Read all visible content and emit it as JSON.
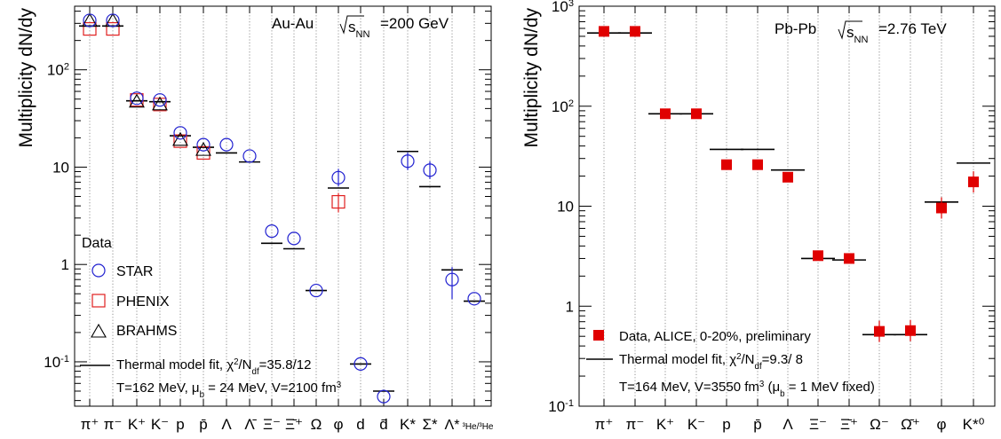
{
  "chart_data": [
    {
      "type": "scatter",
      "title": "Au-Au √s_NN=200 GeV",
      "title_parts": {
        "system": "Au-Au",
        "sqrt": "s",
        "sub": "NN",
        "energy": "=200 GeV"
      },
      "ylabel": "Multiplicity dN/dy",
      "yscale": "log",
      "ylim": [
        0.035,
        450
      ],
      "grid": "vertical dotted",
      "categories": [
        "π⁺",
        "π⁻",
        "K⁺",
        "K⁻",
        "p",
        "p̄",
        "Λ",
        "Λ̄",
        "Ξ⁻",
        "Ξ̄⁺",
        "Ω",
        "φ",
        "d",
        "d̄",
        "K*",
        "Σ*",
        "Λ*",
        "³He/³He"
      ],
      "ytick_labels": [
        {
          "value": 0.1,
          "label": "10",
          "exp": "-1"
        },
        {
          "value": 1,
          "label": "1"
        },
        {
          "value": 10,
          "label": "10"
        },
        {
          "value": 100,
          "label": "10",
          "exp": "2"
        }
      ],
      "legend_title": "Data",
      "series": [
        {
          "name": "STAR",
          "marker": "circle",
          "color": "#2020d0",
          "points": [
            [
              0,
              322
            ],
            [
              1,
              322
            ],
            [
              2,
              51
            ],
            [
              3,
              49
            ],
            [
              4,
              22.5
            ],
            [
              5,
              17
            ],
            [
              6,
              17
            ],
            [
              7,
              13
            ],
            [
              8,
              2.2
            ],
            [
              9,
              1.85
            ],
            [
              10,
              0.54
            ],
            [
              11,
              7.8
            ],
            [
              12,
              0.095
            ],
            [
              13,
              0.044
            ],
            [
              14,
              11.5
            ],
            [
              15,
              9.3
            ],
            [
              16,
              0.7
            ],
            [
              17,
              0.445
            ]
          ]
        },
        {
          "name": "PHENIX",
          "marker": "square",
          "color": "#e02020",
          "points": [
            [
              0,
              263
            ],
            [
              1,
              263
            ],
            [
              2,
              49
            ],
            [
              3,
              44
            ],
            [
              4,
              18.5
            ],
            [
              5,
              14
            ],
            [
              11,
              4.4
            ]
          ]
        },
        {
          "name": "BRAHMS",
          "marker": "triangle",
          "color": "#000000",
          "points": [
            [
              0,
              318
            ],
            [
              1,
              318
            ],
            [
              2,
              47
            ],
            [
              3,
              44
            ],
            [
              4,
              19
            ],
            [
              5,
              15
            ]
          ]
        }
      ],
      "model": {
        "name": "Thermal model fit, χ²/N_df=35.8/12",
        "values": [
          [
            0,
            282
          ],
          [
            1,
            282
          ],
          [
            2,
            48
          ],
          [
            3,
            47
          ],
          [
            4,
            21
          ],
          [
            5,
            16
          ],
          [
            6,
            14
          ],
          [
            7,
            11.3
          ],
          [
            8,
            1.65
          ],
          [
            9,
            1.45
          ],
          [
            10,
            0.54
          ],
          [
            11,
            6.1
          ],
          [
            12,
            0.095
          ],
          [
            13,
            0.05
          ],
          [
            14,
            14.5
          ],
          [
            15,
            6.3
          ],
          [
            16,
            0.88
          ],
          [
            17,
            0.42
          ]
        ]
      },
      "legend": {
        "header": "Data",
        "star": "STAR",
        "phenix": "PHENIX",
        "brahms": "BRAHMS",
        "model_prefix": "Thermal model fit, χ",
        "model_mid": "/N",
        "model_sub": "df",
        "model_suffix": "=35.8/12",
        "params_a": "T=162 MeV, μ",
        "params_b": " = 24 MeV, V=2100 fm",
        "params_b_sub": "b",
        "params_exp": "3"
      }
    },
    {
      "type": "scatter",
      "title": "Pb-Pb √s_NN=2.76 TeV",
      "title_parts": {
        "system": "Pb-Pb",
        "sqrt": "s",
        "sub": "NN",
        "energy": "=2.76 TeV"
      },
      "ylabel": "Multiplicity dN/dy",
      "yscale": "log",
      "ylim": [
        0.1,
        1000
      ],
      "grid": "vertical dotted",
      "categories": [
        "π⁺",
        "π⁻",
        "K⁺",
        "K⁻",
        "p",
        "p̄",
        "Λ",
        "Ξ⁻",
        "Ξ̄⁺",
        "Ω⁻",
        "Ω̄⁺",
        "φ",
        "K*⁰"
      ],
      "ytick_labels": [
        {
          "value": 0.1,
          "label": "10",
          "exp": "-1"
        },
        {
          "value": 1,
          "label": "1"
        },
        {
          "value": 10,
          "label": "10"
        },
        {
          "value": 100,
          "label": "10",
          "exp": "2"
        },
        {
          "value": 1000,
          "label": "10",
          "exp": "3"
        }
      ],
      "series": [
        {
          "name": "Data, ALICE, 0-20%, preliminary",
          "marker": "filled-square",
          "color": "#e00000",
          "points": [
            [
              0,
              560
            ],
            [
              1,
              560
            ],
            [
              2,
              84
            ],
            [
              3,
              84
            ],
            [
              4,
              26
            ],
            [
              5,
              26
            ],
            [
              6,
              19.5
            ],
            [
              7,
              3.2
            ],
            [
              8,
              3.0
            ],
            [
              9,
              0.56
            ],
            [
              10,
              0.57
            ],
            [
              11,
              9.6
            ],
            [
              12,
              17.5
            ]
          ]
        }
      ],
      "model": {
        "name": "Thermal model fit, χ²/N_df=9.3/ 8",
        "values": [
          [
            0,
            540
          ],
          [
            1,
            540
          ],
          [
            2,
            84
          ],
          [
            3,
            84
          ],
          [
            4,
            37
          ],
          [
            5,
            37
          ],
          [
            6,
            23
          ],
          [
            7,
            3.0
          ],
          [
            8,
            2.9
          ],
          [
            9,
            0.52
          ],
          [
            10,
            0.52
          ],
          [
            11,
            11
          ],
          [
            12,
            27
          ]
        ]
      },
      "legend": {
        "data": "Data, ALICE, 0-20%, preliminary",
        "model_prefix": "Thermal model fit, χ",
        "model_mid": "/N",
        "model_sub": "df",
        "model_suffix": "=9.3/ 8",
        "params_a": "T=164 MeV, V=3550 fm",
        "params_exp": "3",
        "params_b": " (μ",
        "params_b_sub": "b",
        "params_c": " = 1 MeV fixed)"
      }
    }
  ]
}
